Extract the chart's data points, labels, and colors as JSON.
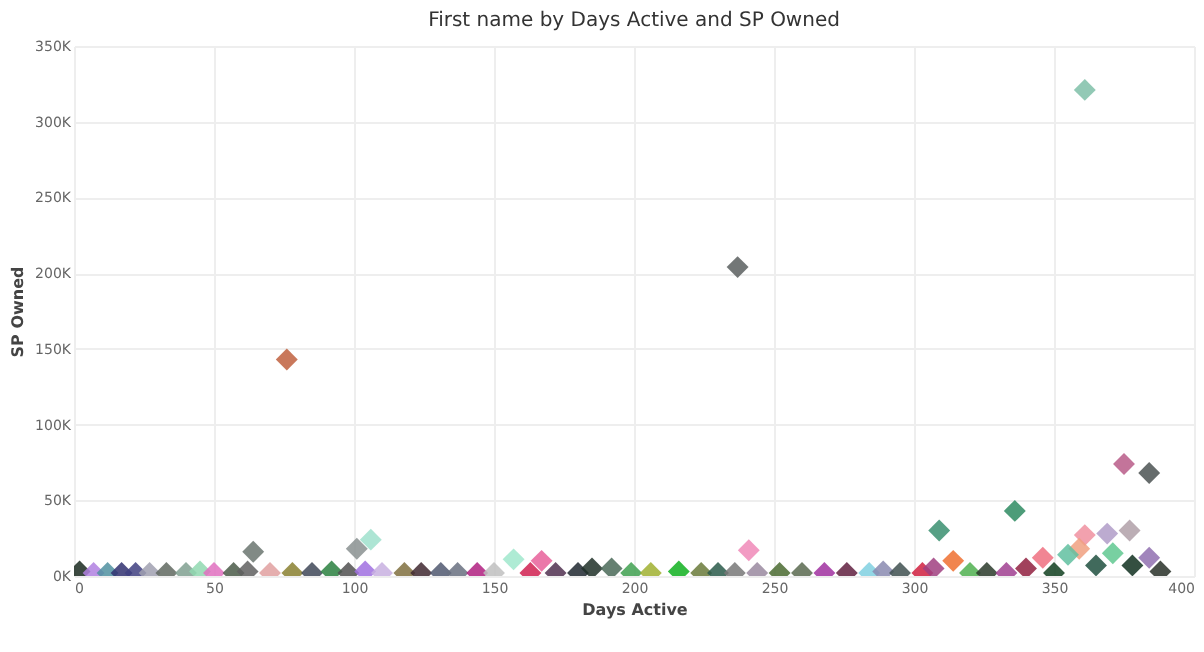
{
  "chart_data": {
    "type": "scatter",
    "title": "First name by Days Active and SP Owned",
    "xlabel": "Days Active",
    "ylabel": "SP Owned",
    "x": [
      76,
      237,
      361,
      375,
      384,
      336,
      309,
      64,
      101,
      106,
      241,
      157,
      167,
      314,
      346,
      361,
      369,
      377,
      359,
      355,
      371,
      384,
      378,
      365,
      2,
      7,
      12,
      17,
      22,
      27,
      33,
      40,
      45,
      50,
      57,
      62,
      70,
      78,
      85,
      92,
      98,
      104,
      110,
      118,
      124,
      131,
      137,
      144,
      150,
      163,
      172,
      180,
      185,
      192,
      199,
      206,
      216,
      224,
      230,
      236,
      244,
      252,
      260,
      268,
      276,
      284,
      289,
      295,
      303,
      307,
      320,
      326,
      333,
      340,
      350,
      388
    ],
    "values": [
      143000,
      204000,
      321000,
      74000,
      68000,
      43000,
      30000,
      16000,
      18000,
      24000,
      17000,
      11000,
      10000,
      10000,
      12000,
      27000,
      28000,
      30000,
      18000,
      14000,
      15000,
      12000,
      7000,
      7000,
      3000,
      2000,
      2000,
      2000,
      2000,
      2000,
      2000,
      2000,
      3000,
      2000,
      2000,
      3000,
      2000,
      2000,
      2000,
      3000,
      2000,
      3000,
      2000,
      2000,
      2000,
      2000,
      2000,
      2000,
      2000,
      2000,
      2000,
      2000,
      5000,
      5000,
      2000,
      2000,
      3000,
      2000,
      2000,
      2000,
      2000,
      2000,
      2000,
      2000,
      2000,
      2000,
      3000,
      2000,
      2000,
      5000,
      2000,
      2000,
      2000,
      5000,
      2000,
      3000
    ],
    "colors": [
      "#c0603e",
      "#5a5f5f",
      "#7fbfa8",
      "#b85c88",
      "#4b5252",
      "#2e8b62",
      "#3a8f70",
      "#6b7570",
      "#8a9090",
      "#9fe0cc",
      "#f08ab8",
      "#a0e8cc",
      "#e8609a",
      "#ef7030",
      "#ef7080",
      "#f090a0",
      "#b09cc8",
      "#b0a0a8",
      "#f0a080",
      "#60c0a0",
      "#60c890",
      "#9070b0",
      "#103020",
      "#205040",
      "#1a2a20",
      "#b080e0",
      "#5090a0",
      "#303070",
      "#404080",
      "#a0a0b0",
      "#606860",
      "#80a090",
      "#90d8b0",
      "#e070c0",
      "#4a5a48",
      "#606060",
      "#e0a0a0",
      "#8a8030",
      "#404858",
      "#2a8040",
      "#505050",
      "#a070e0",
      "#c8b0e0",
      "#807040",
      "#402830",
      "#505870",
      "#687080",
      "#b02080",
      "#c0c0c0",
      "#d02050",
      "#503050",
      "#202830",
      "#203028",
      "#4a6a58",
      "#40a050",
      "#a0b030",
      "#10b020",
      "#6a7a3a",
      "#2a5a4a",
      "#787878",
      "#9a8aa0",
      "#4a6a30",
      "#5a6a50",
      "#a030a0",
      "#602040",
      "#80d0e0",
      "#8a8ab0",
      "#405050",
      "#d02040",
      "#a04080",
      "#50b050",
      "#2a3a2a",
      "#a04090",
      "#902040",
      "#104020",
      "#283028"
    ],
    "xlim": [
      0,
      400
    ],
    "xticks": [
      0,
      50,
      100,
      150,
      200,
      250,
      300,
      350,
      400
    ],
    "ylim": [
      0,
      350000
    ],
    "yticks": [
      {
        "value": 0,
        "label": "0K"
      },
      {
        "value": 50000,
        "label": "50K"
      },
      {
        "value": 100000,
        "label": "100K"
      },
      {
        "value": 150000,
        "label": "150K"
      },
      {
        "value": 200000,
        "label": "200K"
      },
      {
        "value": 250000,
        "label": "250K"
      },
      {
        "value": 300000,
        "label": "300K"
      },
      {
        "value": 350000,
        "label": "350K"
      }
    ],
    "grid": true,
    "marker": "diamond"
  }
}
